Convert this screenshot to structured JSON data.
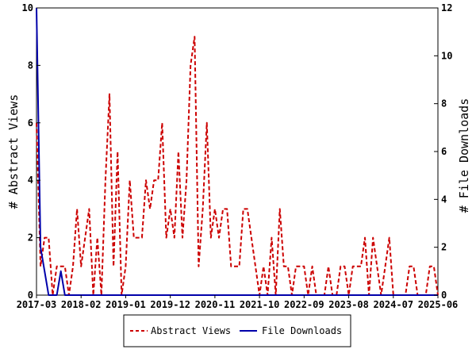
{
  "chart_data": {
    "type": "line",
    "ylabel": "# Abstract Views",
    "y2label": "# File Downloads",
    "ylim": [
      0,
      10
    ],
    "y2lim": [
      0,
      12
    ],
    "yticks": [
      "0",
      "2",
      "4",
      "6",
      "8",
      "10"
    ],
    "y2ticks": [
      "0",
      "2",
      "4",
      "6",
      "8",
      "10",
      "12"
    ],
    "xlim": [
      "2017-03",
      "2025-06"
    ],
    "xticks": [
      "2017-03",
      "2018-02",
      "2019-01",
      "2019-12",
      "2020-11",
      "2021-10",
      "2022-09",
      "2023-08",
      "2024-07",
      "2025-06"
    ],
    "legend_position": "bottom",
    "grid": false,
    "series": [
      {
        "name": "Abstract Views",
        "color": "#cc0000",
        "style": "dashed",
        "axis": "left",
        "x": [
          "2017-03",
          "2017-04",
          "2017-05",
          "2017-06",
          "2017-07",
          "2017-08",
          "2017-09",
          "2017-10",
          "2017-11",
          "2017-12",
          "2018-01",
          "2018-02",
          "2018-03",
          "2018-04",
          "2018-05",
          "2018-06",
          "2018-07",
          "2018-08",
          "2018-09",
          "2018-10",
          "2018-11",
          "2018-12",
          "2019-01",
          "2019-02",
          "2019-03",
          "2019-04",
          "2019-05",
          "2019-06",
          "2019-07",
          "2019-08",
          "2019-09",
          "2019-10",
          "2019-11",
          "2019-12",
          "2020-01",
          "2020-02",
          "2020-03",
          "2020-04",
          "2020-05",
          "2020-06",
          "2020-07",
          "2020-08",
          "2020-09",
          "2020-10",
          "2020-11",
          "2020-12",
          "2021-01",
          "2021-02",
          "2021-03",
          "2021-04",
          "2021-05",
          "2021-06",
          "2021-07",
          "2021-08",
          "2021-09",
          "2021-10",
          "2021-11",
          "2021-12",
          "2022-01",
          "2022-02",
          "2022-03",
          "2022-04",
          "2022-05",
          "2022-06",
          "2022-07",
          "2022-08",
          "2022-09",
          "2022-10",
          "2022-11",
          "2022-12",
          "2023-01",
          "2023-02",
          "2023-03",
          "2023-04",
          "2023-05",
          "2023-06",
          "2023-07",
          "2023-08",
          "2023-09",
          "2023-10",
          "2023-11",
          "2023-12",
          "2024-01",
          "2024-02",
          "2024-03",
          "2024-04",
          "2024-05",
          "2024-06",
          "2024-07",
          "2024-08",
          "2024-09",
          "2024-10",
          "2024-11",
          "2024-12",
          "2025-01",
          "2025-02",
          "2025-03",
          "2025-04",
          "2025-05",
          "2025-06"
        ],
        "values": [
          6,
          1,
          2,
          2,
          0,
          1,
          1,
          1,
          0,
          1,
          3,
          1,
          2,
          3,
          0,
          2,
          0,
          4,
          7,
          1,
          5,
          0,
          1,
          4,
          2,
          2,
          2,
          4,
          3,
          4,
          4,
          6,
          2,
          3,
          2,
          5,
          2,
          4,
          8,
          9,
          1,
          3,
          6,
          2,
          3,
          2,
          3,
          3,
          1,
          1,
          1,
          3,
          3,
          2,
          1,
          0,
          1,
          0,
          2,
          0,
          3,
          1,
          1,
          0,
          1,
          1,
          1,
          0,
          1,
          0,
          0,
          0,
          1,
          0,
          0,
          1,
          1,
          0,
          1,
          1,
          1,
          2,
          0,
          2,
          1,
          0,
          1,
          2,
          0,
          0,
          0,
          0,
          1,
          1,
          0,
          0,
          0,
          1,
          1,
          0
        ]
      },
      {
        "name": "File Downloads",
        "color": "#0000aa",
        "style": "solid",
        "axis": "right",
        "x": [
          "2017-03",
          "2017-04",
          "2017-05",
          "2017-06",
          "2017-07",
          "2017-08",
          "2017-09",
          "2017-10",
          "2017-11",
          "2017-12",
          "2025-06"
        ],
        "values": [
          12,
          2,
          1,
          0,
          0,
          0,
          1,
          0,
          0,
          0,
          0
        ]
      }
    ]
  }
}
